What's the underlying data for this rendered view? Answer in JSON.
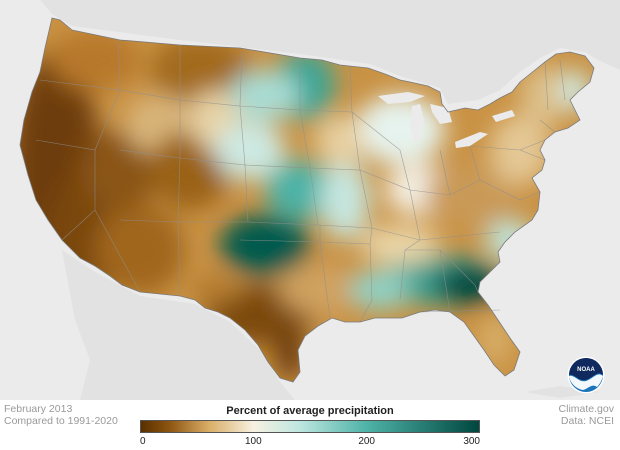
{
  "header": {
    "date_line1": "February 2013",
    "date_line2": "Compared to 1991-2020",
    "credit_line1": "Climate.gov",
    "credit_line2": "Data: NCEI"
  },
  "legend": {
    "title": "Percent of average precipitation",
    "ticks": [
      "0",
      "100",
      "200",
      "300"
    ],
    "tick_values": [
      0,
      100,
      200,
      300
    ],
    "min": 0,
    "max": 300,
    "color_stops": [
      {
        "value": 0,
        "color": "#5a3000"
      },
      {
        "value": 25,
        "color": "#8c5410"
      },
      {
        "value": 60,
        "color": "#d9ad66"
      },
      {
        "value": 100,
        "color": "#f7f1e1"
      },
      {
        "value": 140,
        "color": "#bfe6e0"
      },
      {
        "value": 200,
        "color": "#4fb3a8"
      },
      {
        "value": 300,
        "color": "#00473f"
      }
    ]
  },
  "map": {
    "region": "Contiguous United States",
    "background_color": "#ebebeb",
    "land_outside_color": "#e0e0e0",
    "state_line_color": "#8f8f8f",
    "logo": "NOAA"
  }
}
